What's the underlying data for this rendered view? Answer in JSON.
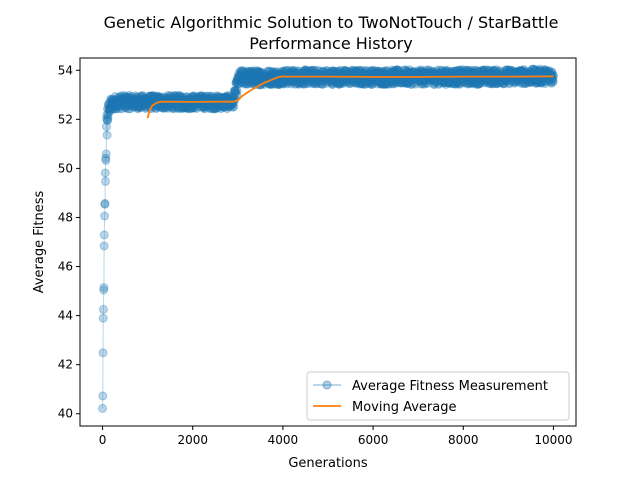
{
  "chart_data": {
    "type": "line",
    "title_line1": "Genetic Algorithmic Solution to TwoNotTouch / StarBattle",
    "title_line2": "Performance History",
    "xlabel": "Generations",
    "ylabel": "Average Fitness",
    "xlim": [
      -500,
      10500
    ],
    "ylim": [
      39.5,
      54.5
    ],
    "xticks": [
      0,
      2000,
      4000,
      6000,
      8000,
      10000
    ],
    "yticks": [
      40,
      42,
      44,
      46,
      48,
      50,
      52,
      54
    ],
    "grid": false,
    "legend_position": "lower-right",
    "series": [
      {
        "name": "Average Fitness Measurement",
        "color": "#1f77b4",
        "style": "line-with-circle-markers",
        "alpha": 0.35,
        "x": [
          0,
          5,
          10,
          15,
          20,
          25,
          30,
          35,
          40,
          45,
          50,
          55,
          60,
          65,
          70,
          75,
          80,
          85,
          90,
          95,
          100,
          110,
          120,
          130,
          140,
          150,
          175,
          200,
          250,
          300,
          400,
          500,
          750,
          1000,
          1500,
          2000,
          2500,
          2900,
          2950,
          3000,
          3050,
          3100,
          3500,
          4000,
          5000,
          6000,
          7000,
          8000,
          9000,
          10000
        ],
        "y": [
          40.0,
          41.0,
          42.3,
          43.2,
          44.0,
          44.8,
          45.6,
          46.3,
          47.0,
          47.6,
          48.2,
          48.8,
          49.4,
          49.9,
          50.3,
          50.7,
          51.0,
          51.3,
          51.5,
          51.7,
          51.9,
          52.1,
          52.2,
          52.35,
          52.45,
          52.5,
          52.55,
          52.6,
          52.65,
          52.7,
          52.7,
          52.7,
          52.7,
          52.7,
          52.7,
          52.7,
          52.7,
          52.7,
          53.1,
          53.5,
          53.7,
          53.7,
          53.7,
          53.72,
          53.72,
          53.72,
          53.72,
          53.72,
          53.74,
          53.76
        ]
      },
      {
        "name": "Moving Average",
        "color": "#ff7f0e",
        "style": "line",
        "x": [
          1000,
          1050,
          1100,
          1200,
          1300,
          1500,
          2000,
          2500,
          2900,
          3000,
          3100,
          3300,
          3600,
          3900,
          4000,
          4100,
          5000,
          6000,
          7000,
          8000,
          9000,
          10000
        ],
        "y": [
          52.05,
          52.4,
          52.55,
          52.68,
          52.72,
          52.72,
          52.71,
          52.72,
          52.72,
          52.78,
          52.95,
          53.2,
          53.5,
          53.72,
          53.75,
          53.74,
          53.74,
          53.73,
          53.73,
          53.74,
          53.74,
          53.75
        ]
      }
    ]
  }
}
